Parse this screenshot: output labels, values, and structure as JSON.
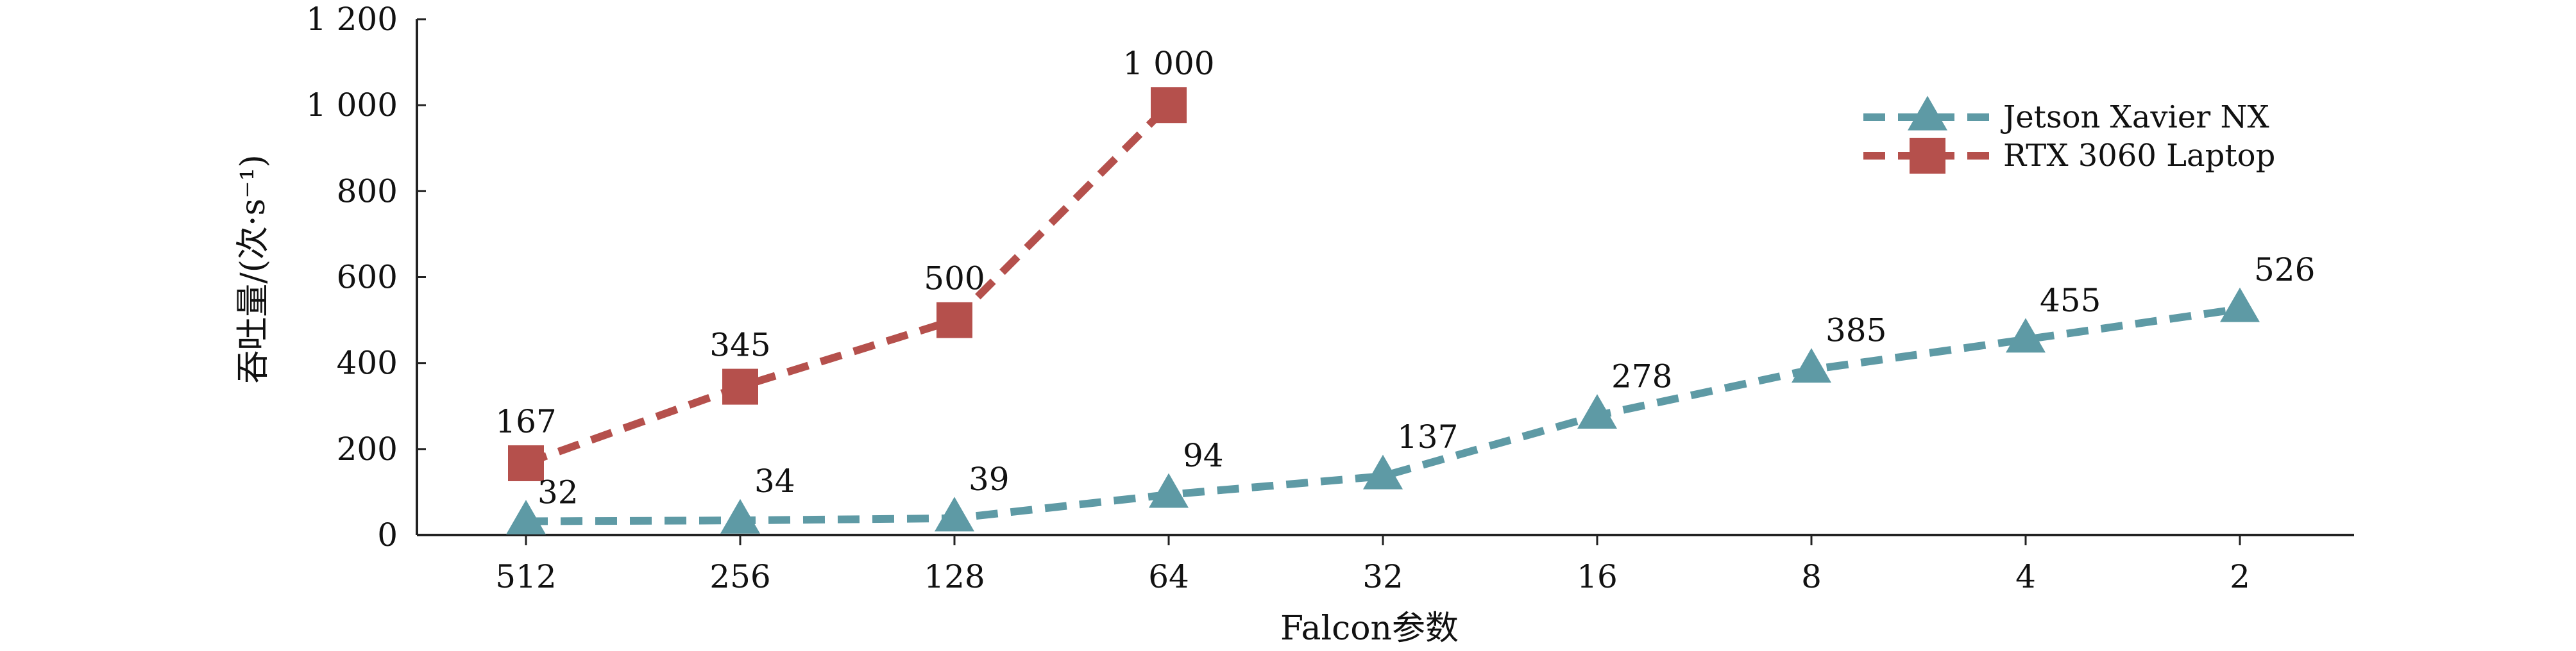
{
  "chart_data": {
    "type": "line",
    "title": "",
    "xlabel": "Falcon参数",
    "ylabel": "吞吐量/(次·s⁻¹)",
    "categories": [
      "512",
      "256",
      "128",
      "64",
      "32",
      "16",
      "8",
      "4",
      "2"
    ],
    "ylim": [
      0,
      1200
    ],
    "yticks": [
      0,
      200,
      400,
      600,
      800,
      1000,
      1200
    ],
    "ytick_labels": [
      "0",
      "200",
      "400",
      "600",
      "800",
      "1 000",
      "1 200"
    ],
    "grid": false,
    "legend_position": "top-right",
    "series": [
      {
        "name": "Jetson Xavier NX",
        "marker": "triangle",
        "line_style": "dashed",
        "color": "#5e9aa5",
        "values": [
          32,
          34,
          39,
          94,
          137,
          278,
          385,
          455,
          526
        ],
        "labels": [
          "32",
          "34",
          "39",
          "94",
          "137",
          "278",
          "385",
          "455",
          "526"
        ]
      },
      {
        "name": "RTX 3060 Laptop",
        "marker": "square",
        "line_style": "dashed",
        "color": "#b5504c",
        "values": [
          167,
          345,
          500,
          1000,
          null,
          null,
          null,
          null,
          null
        ],
        "labels": [
          "167",
          "345",
          "500",
          "1 000",
          "",
          "",
          "",
          "",
          ""
        ]
      }
    ]
  }
}
